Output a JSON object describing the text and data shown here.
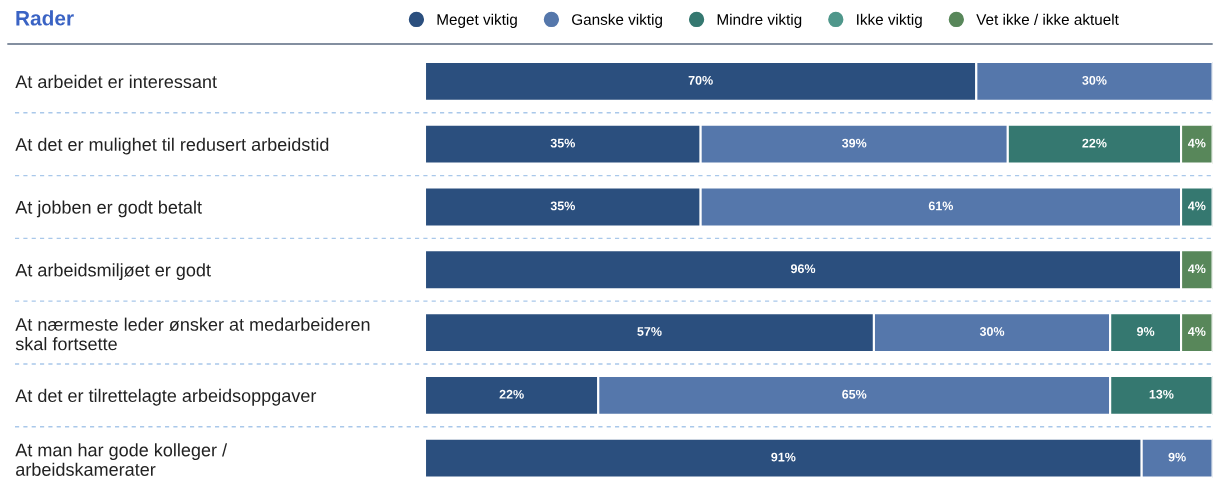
{
  "chart_data": {
    "type": "bar",
    "orientation": "horizontal",
    "stacked": true,
    "title": "Rader",
    "categories": [
      "At arbeidet er interessant",
      "At det er mulighet til redusert arbeidstid",
      "At jobben er godt betalt",
      "At arbeidsmiljøet er godt",
      "At nærmeste leder ønsker at medarbeideren\nskal fortsette",
      "At det er tilrettelagte arbeidsoppgaver",
      "At man har gode kolleger /\narbeidskamerater"
    ],
    "series": [
      {
        "name": "Meget viktig",
        "color": "#2b4f7e",
        "values": [
          70,
          35,
          35,
          96,
          57,
          22,
          91
        ],
        "value_labels": [
          "70%",
          "35%",
          "35%",
          "96%",
          "57%",
          "22%",
          "91%"
        ]
      },
      {
        "name": "Ganske viktig",
        "color": "#5577ab",
        "values": [
          30,
          39,
          61,
          null,
          30,
          65,
          9
        ],
        "value_labels": [
          "30%",
          "39%",
          "61%",
          null,
          "30%",
          "65%",
          "9%"
        ]
      },
      {
        "name": "Mindre viktig",
        "color": "#357870",
        "values": [
          null,
          22,
          4,
          null,
          9,
          13,
          null
        ],
        "value_labels": [
          null,
          "22%",
          "4%",
          null,
          "9%",
          "13%",
          null
        ]
      },
      {
        "name": "Ikke viktig",
        "color": "#4f978b",
        "values": [
          null,
          null,
          null,
          null,
          null,
          null,
          null
        ],
        "value_labels": [
          null,
          null,
          null,
          null,
          null,
          null,
          null
        ]
      },
      {
        "name": "Vet ikke / ikke aktuelt",
        "color": "#58875a",
        "values": [
          null,
          4,
          null,
          4,
          4,
          null,
          null
        ],
        "value_labels": [
          null,
          "4%",
          null,
          "4%",
          "4%",
          null,
          null
        ]
      }
    ],
    "xlim": [
      0,
      100
    ],
    "tick_labels": "y",
    "legend": "top",
    "grid": false
  }
}
